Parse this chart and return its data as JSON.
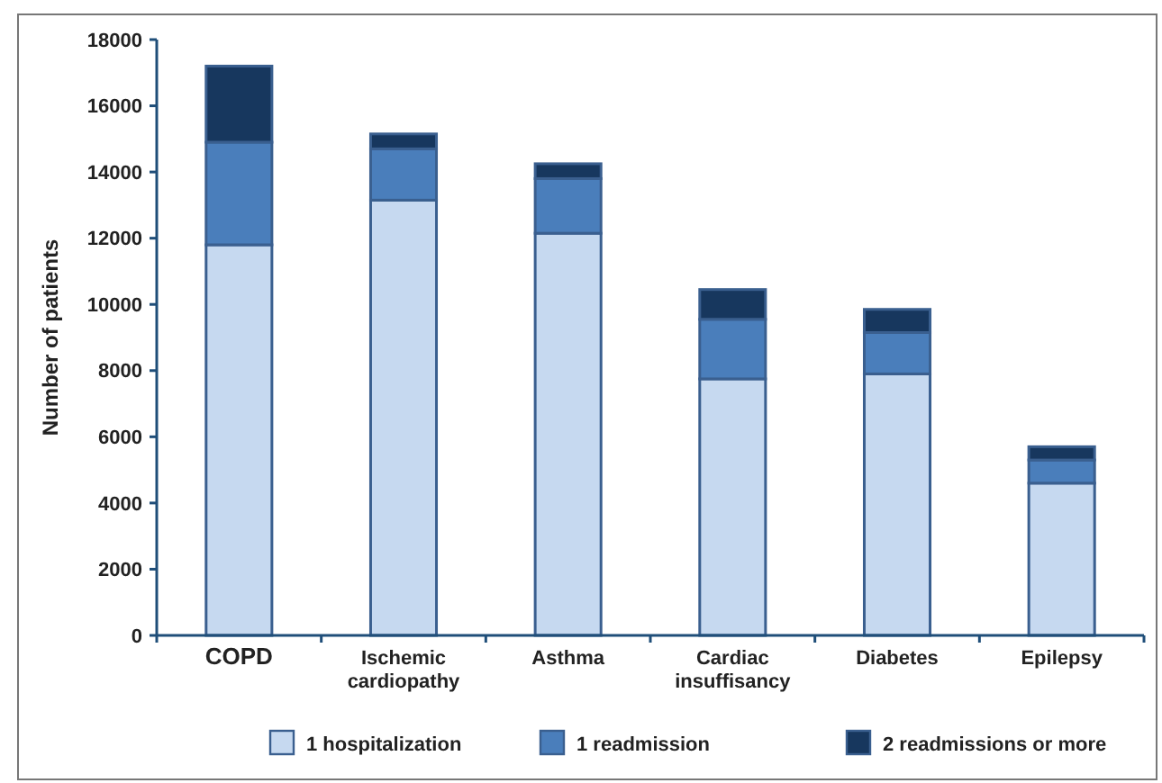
{
  "chart_data": {
    "type": "bar",
    "stacked": true,
    "ylabel": "Number of patients",
    "categories": [
      "COPD",
      "Ischemic cardiopathy",
      "Asthma",
      "Cardiac insuffisancy",
      "Diabetes",
      "Epilepsy"
    ],
    "series": [
      {
        "name": "1 hospitalization",
        "color": "#c6d9f0",
        "values": [
          11800,
          13150,
          12150,
          7750,
          7900,
          4600
        ]
      },
      {
        "name": "1 readmission",
        "color": "#4a7ebb",
        "values": [
          3100,
          1550,
          1650,
          1800,
          1250,
          700
        ]
      },
      {
        "name": "2 readmissions or more",
        "color": "#17375e",
        "values": [
          2300,
          450,
          450,
          900,
          700,
          400
        ]
      }
    ],
    "ylim": [
      0,
      18000
    ],
    "yticks": [
      0,
      2000,
      4000,
      6000,
      8000,
      10000,
      12000,
      14000,
      16000,
      18000
    ],
    "grid": false,
    "legend": "bottom"
  }
}
